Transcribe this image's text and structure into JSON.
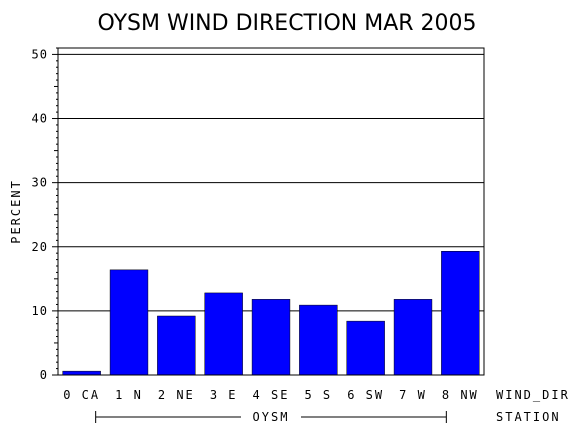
{
  "colors": {
    "bar": "#0000ff",
    "axis": "#000000",
    "grid": "#000000",
    "background": "#ffffff"
  },
  "chart_data": {
    "type": "bar",
    "title": "OYSM WIND DIRECTION MAR 2005",
    "ylabel": "PERCENT",
    "xlabel": "WIND_DIR",
    "group_axis_label": "STATION",
    "group_label": "OYSM",
    "categories": [
      "0 CA",
      "1 N",
      "2 NE",
      "3 E",
      "4 SE",
      "5 S",
      "6 SW",
      "7 W",
      "8 NW"
    ],
    "values": [
      0.6,
      16.4,
      9.2,
      12.8,
      11.8,
      10.9,
      8.4,
      11.8,
      19.3
    ],
    "ylim": [
      0,
      51
    ],
    "yticks": [
      0,
      10,
      20,
      30,
      40,
      50
    ],
    "grid": true
  }
}
